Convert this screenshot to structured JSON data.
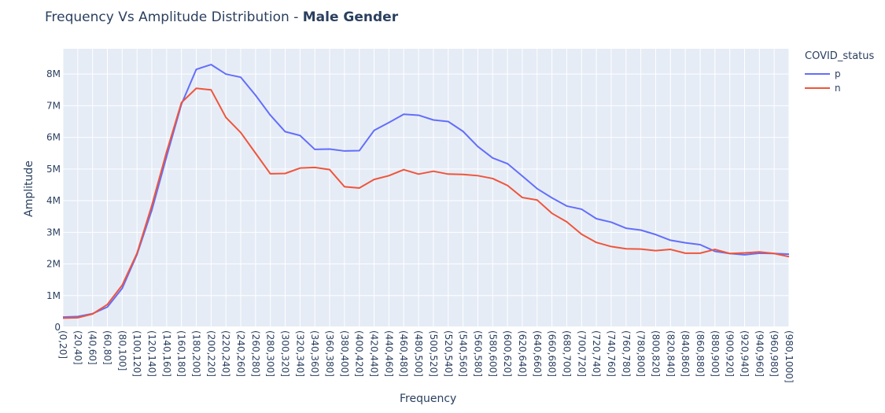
{
  "title": {
    "prefix": "Frequency Vs Amplitude Distribution - ",
    "bold": "Male Gender"
  },
  "legend": {
    "title": "COVID_status",
    "placement": "top-right"
  },
  "colors": {
    "plot_bg": "#e5ecf6",
    "grid": "#ffffff",
    "text": "#2a3f5f",
    "p": "#636efa",
    "n": "#ef553b"
  },
  "chart_data": {
    "type": "line",
    "title": "Frequency Vs Amplitude Distribution - Male Gender",
    "xlabel": "Frequency",
    "ylabel": "Amplitude",
    "grid": true,
    "ylim": [
      0,
      8800000
    ],
    "yticks": [
      0,
      1000000,
      2000000,
      3000000,
      4000000,
      5000000,
      6000000,
      7000000,
      8000000
    ],
    "ytick_labels": [
      "0",
      "1M",
      "2M",
      "3M",
      "4M",
      "5M",
      "6M",
      "7M",
      "8M"
    ],
    "categories": [
      "(0,20]",
      "(20,40]",
      "(40,60]",
      "(60,80]",
      "(80,100]",
      "(100,120]",
      "(120,140]",
      "(140,160]",
      "(160,180]",
      "(180,200]",
      "(200,220]",
      "(220,240]",
      "(240,260]",
      "(260,280]",
      "(280,300]",
      "(300,320]",
      "(320,340]",
      "(340,360]",
      "(360,380]",
      "(380,400]",
      "(400,420]",
      "(420,440]",
      "(440,460]",
      "(460,480]",
      "(480,500]",
      "(500,520]",
      "(520,540]",
      "(540,560]",
      "(560,580]",
      "(580,600]",
      "(600,620]",
      "(620,640]",
      "(640,660]",
      "(660,680]",
      "(680,700]",
      "(700,720]",
      "(720,740]",
      "(740,760]",
      "(760,780]",
      "(780,800]",
      "(800,820]",
      "(820,840]",
      "(840,860]",
      "(860,880]",
      "(880,900]",
      "(900,920]",
      "(920,940]",
      "(940,960]",
      "(960,980]",
      "(980,1000]"
    ],
    "series": [
      {
        "name": "p",
        "color": "#636efa",
        "values": [
          320000,
          340000,
          430000,
          640000,
          1230000,
          2300000,
          3700000,
          5400000,
          7050000,
          8150000,
          8300000,
          8000000,
          7900000,
          7330000,
          6700000,
          6180000,
          6060000,
          5620000,
          5630000,
          5570000,
          5580000,
          6220000,
          6470000,
          6730000,
          6700000,
          6550000,
          6500000,
          6190000,
          5710000,
          5350000,
          5170000,
          4780000,
          4380000,
          4090000,
          3830000,
          3730000,
          3430000,
          3320000,
          3130000,
          3070000,
          2930000,
          2750000,
          2670000,
          2610000,
          2400000,
          2330000,
          2290000,
          2340000,
          2330000,
          2310000
        ]
      },
      {
        "name": "n",
        "color": "#ef553b",
        "values": [
          290000,
          300000,
          420000,
          720000,
          1330000,
          2340000,
          3850000,
          5550000,
          7100000,
          7550000,
          7500000,
          6630000,
          6150000,
          5500000,
          4850000,
          4860000,
          5030000,
          5050000,
          4980000,
          4440000,
          4400000,
          4670000,
          4790000,
          4980000,
          4840000,
          4930000,
          4840000,
          4830000,
          4790000,
          4700000,
          4480000,
          4100000,
          4020000,
          3600000,
          3330000,
          2940000,
          2680000,
          2550000,
          2480000,
          2470000,
          2420000,
          2460000,
          2340000,
          2340000,
          2460000,
          2330000,
          2350000,
          2380000,
          2330000,
          2230000
        ]
      }
    ]
  }
}
